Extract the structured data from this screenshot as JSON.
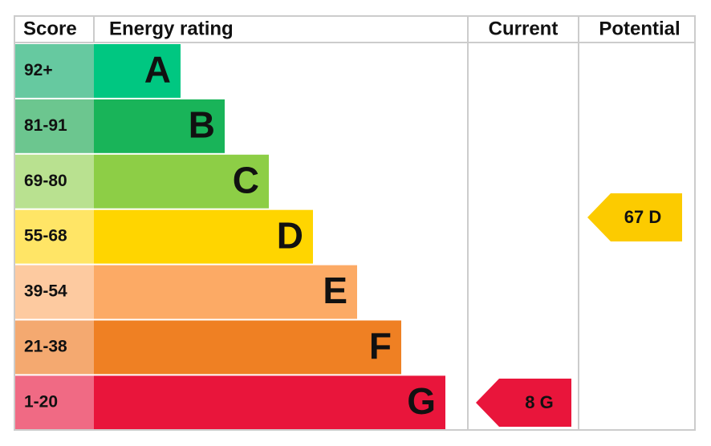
{
  "header": [
    "Score",
    "Energy rating",
    "Current",
    "Potential"
  ],
  "bands": [
    {
      "score": "92+",
      "letter": "A"
    },
    {
      "score": "81-91",
      "letter": "B"
    },
    {
      "score": "69-80",
      "letter": "C"
    },
    {
      "score": "55-68",
      "letter": "D"
    },
    {
      "score": "39-54",
      "letter": "E"
    },
    {
      "score": "21-38",
      "letter": "F"
    },
    {
      "score": "1-20",
      "letter": "G"
    }
  ],
  "current": "8 G",
  "potential": "67 D"
}
